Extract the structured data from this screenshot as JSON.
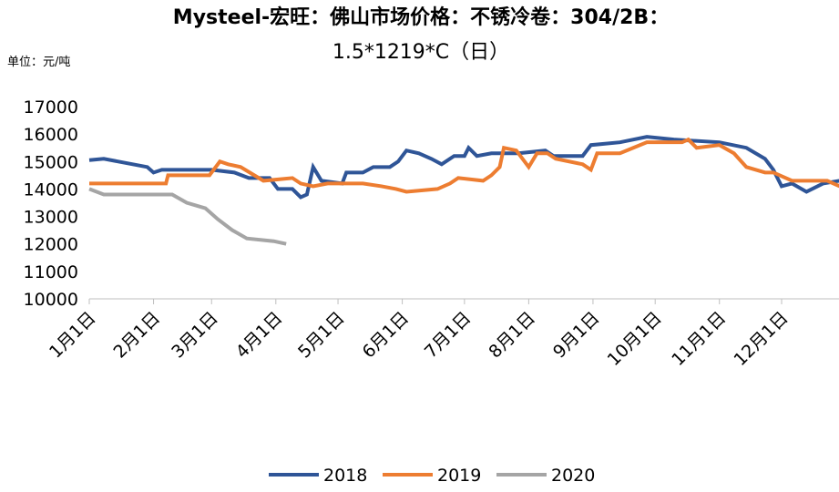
{
  "chart_data": {
    "type": "line",
    "title": [
      "Mysteel-宏旺：佛山市场价格：不锈冷卷：304/2B：",
      "1.5*1219*C（日）"
    ],
    "unit_label": "单位：元/吨",
    "xlim": [
      1,
      363
    ],
    "xticks": [
      {
        "value": 1,
        "label": "1月1日"
      },
      {
        "value": 32,
        "label": "2月1日"
      },
      {
        "value": 60,
        "label": "3月1日"
      },
      {
        "value": 91,
        "label": "4月1日"
      },
      {
        "value": 121,
        "label": "5月1日"
      },
      {
        "value": 152,
        "label": "6月1日"
      },
      {
        "value": 182,
        "label": "7月1日"
      },
      {
        "value": 213,
        "label": "8月1日"
      },
      {
        "value": 244,
        "label": "9月1日"
      },
      {
        "value": 274,
        "label": "10月1日"
      },
      {
        "value": 305,
        "label": "11月1日"
      },
      {
        "value": 335,
        "label": "12月1日"
      }
    ],
    "ylim": [
      10000,
      17000
    ],
    "yticks": [
      10000,
      11000,
      12000,
      13000,
      14000,
      15000,
      16000,
      17000
    ],
    "series": [
      {
        "name": "2018",
        "color": "#2f5597",
        "x": [
          1,
          8,
          15,
          22,
          29,
          32,
          36,
          60,
          71,
          78,
          88,
          92,
          99,
          103,
          106,
          109,
          113,
          123,
          125,
          133,
          138,
          146,
          150,
          154,
          160,
          166,
          171,
          177,
          182,
          184,
          188,
          195,
          208,
          221,
          225,
          239,
          243,
          257,
          270,
          283,
          305,
          318,
          327,
          331,
          335,
          340,
          347,
          355,
          363
        ],
        "values": [
          15050,
          15100,
          15000,
          14900,
          14800,
          14600,
          14700,
          14700,
          14600,
          14400,
          14400,
          14000,
          14000,
          13700,
          13800,
          14800,
          14300,
          14200,
          14600,
          14600,
          14800,
          14800,
          15000,
          15400,
          15300,
          15100,
          14900,
          15200,
          15200,
          15500,
          15200,
          15300,
          15300,
          15400,
          15200,
          15200,
          15600,
          15700,
          15900,
          15800,
          15700,
          15500,
          15100,
          14700,
          14100,
          14200,
          13900,
          14200,
          14300
        ]
      },
      {
        "name": "2019",
        "color": "#ed7d31",
        "x": [
          1,
          38,
          39,
          59,
          64,
          68,
          74,
          85,
          99,
          103,
          109,
          116,
          133,
          142,
          149,
          154,
          169,
          175,
          179,
          191,
          195,
          199,
          201,
          207,
          213,
          217,
          222,
          226,
          239,
          243,
          246,
          257,
          270,
          287,
          290,
          294,
          305,
          312,
          318,
          327,
          331,
          340,
          357,
          363
        ],
        "values": [
          14200,
          14200,
          14500,
          14500,
          15000,
          14900,
          14800,
          14300,
          14400,
          14200,
          14100,
          14200,
          14200,
          14100,
          14000,
          13900,
          14000,
          14200,
          14400,
          14300,
          14500,
          14800,
          15500,
          15400,
          14800,
          15300,
          15300,
          15100,
          14900,
          14700,
          15300,
          15300,
          15700,
          15700,
          15800,
          15500,
          15600,
          15300,
          14800,
          14600,
          14600,
          14300,
          14300,
          14100
        ]
      },
      {
        "name": "2020",
        "color": "#a5a5a5",
        "x": [
          1,
          8,
          41,
          48,
          57,
          63,
          70,
          77,
          90,
          96
        ],
        "values": [
          14000,
          13800,
          13800,
          13500,
          13300,
          12900,
          12500,
          12200,
          12100,
          12000
        ]
      }
    ]
  }
}
